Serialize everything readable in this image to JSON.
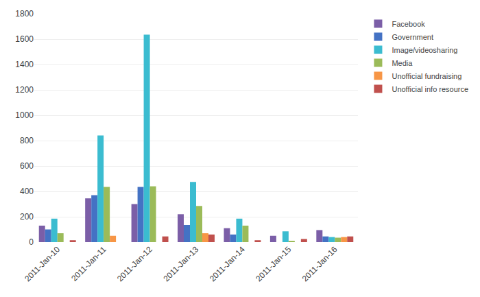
{
  "chart_data": {
    "type": "bar",
    "categories": [
      "2011-Jan-10",
      "2011-Jan-11",
      "2011-Jan-12",
      "2011-Jan-13",
      "2011-Jan-14",
      "2011-Jan-15",
      "2011-Jan-16"
    ],
    "series": [
      {
        "name": "Facebook",
        "color": "#7B5EA7",
        "values": [
          130,
          345,
          300,
          220,
          110,
          50,
          95
        ]
      },
      {
        "name": "Government",
        "color": "#4472C4",
        "values": [
          100,
          370,
          435,
          135,
          60,
          0,
          45
        ]
      },
      {
        "name": "Image/videosharing",
        "color": "#3BBCD0",
        "values": [
          185,
          840,
          1635,
          475,
          185,
          85,
          40
        ]
      },
      {
        "name": "Media",
        "color": "#9BBB59",
        "values": [
          70,
          435,
          440,
          285,
          130,
          10,
          35
        ]
      },
      {
        "name": "Unofficial fundraising",
        "color": "#F79646",
        "values": [
          0,
          50,
          0,
          70,
          0,
          0,
          40
        ]
      },
      {
        "name": "Unofficial info resource",
        "color": "#C0504D",
        "values": [
          15,
          0,
          45,
          60,
          15,
          25,
          45
        ]
      }
    ],
    "ylim": [
      0,
      1800
    ],
    "yticks": [
      0,
      200,
      400,
      600,
      800,
      1000,
      1200,
      1400,
      1600,
      1800
    ],
    "grid": true,
    "legend": "right"
  }
}
